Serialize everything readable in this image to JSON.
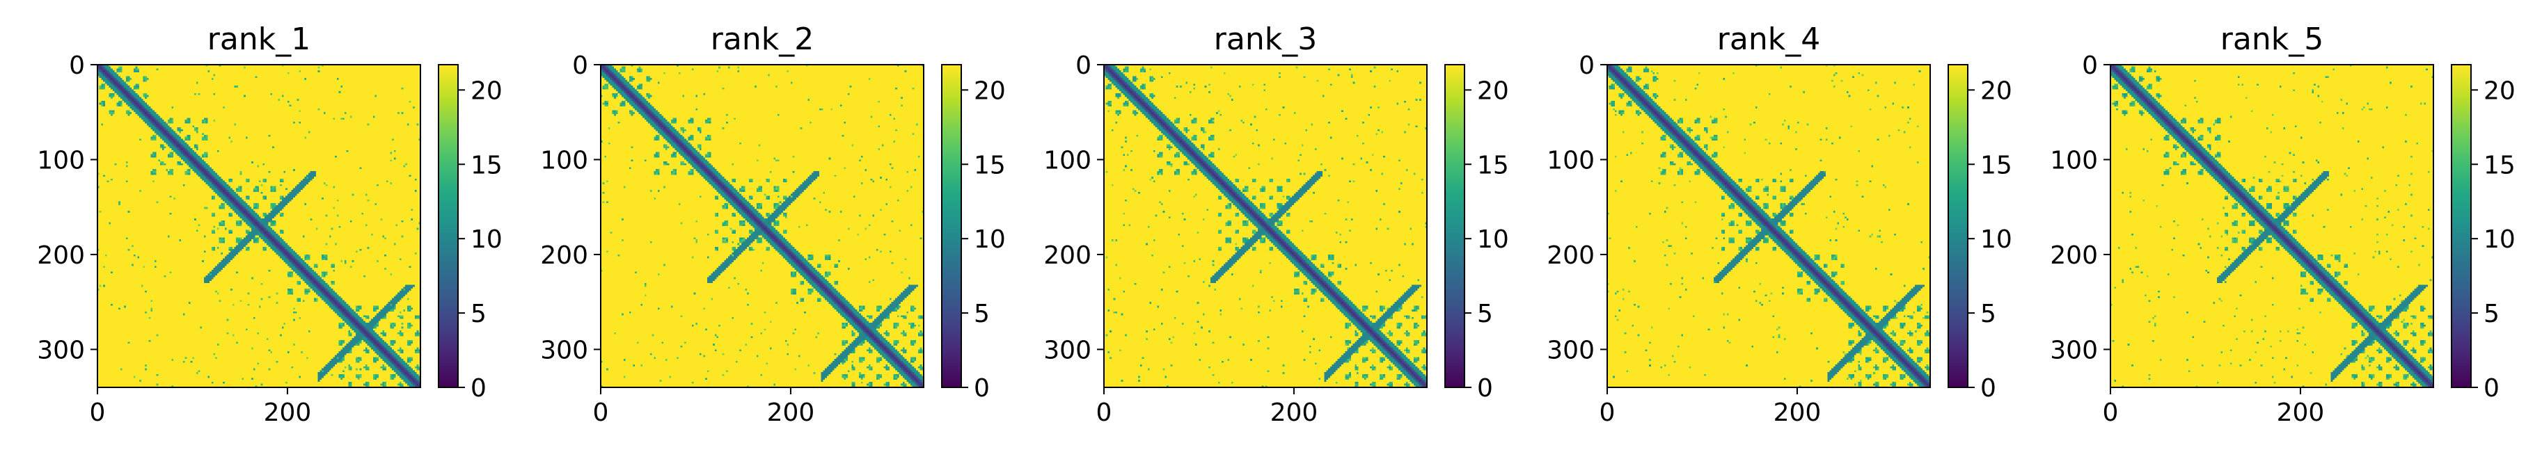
{
  "figure": {
    "background": "#ffffff"
  },
  "colormap": "viridis",
  "colors": {
    "viridis_min": "#440154",
    "viridis_max": "#fde725",
    "axis": "#000000"
  },
  "chart_data": [
    {
      "type": "heatmap",
      "title": "rank_1",
      "x_ticks": [
        0,
        200
      ],
      "y_ticks": [
        0,
        100,
        200,
        300
      ],
      "xlim": [
        0,
        340
      ],
      "ylim": [
        340,
        0
      ],
      "colorbar": {
        "ticks": [
          0,
          5,
          10,
          15,
          20
        ],
        "range": [
          0,
          21.7
        ],
        "colormap": "viridis"
      },
      "matrix_size": 340,
      "grid": false
    },
    {
      "type": "heatmap",
      "title": "rank_2",
      "x_ticks": [
        0,
        200
      ],
      "y_ticks": [
        0,
        100,
        200,
        300
      ],
      "xlim": [
        0,
        340
      ],
      "ylim": [
        340,
        0
      ],
      "colorbar": {
        "ticks": [
          0,
          5,
          10,
          15,
          20
        ],
        "range": [
          0,
          21.7
        ],
        "colormap": "viridis"
      },
      "matrix_size": 340,
      "grid": false
    },
    {
      "type": "heatmap",
      "title": "rank_3",
      "x_ticks": [
        0,
        200
      ],
      "y_ticks": [
        0,
        100,
        200,
        300
      ],
      "xlim": [
        0,
        340
      ],
      "ylim": [
        340,
        0
      ],
      "colorbar": {
        "ticks": [
          0,
          5,
          10,
          15,
          20
        ],
        "range": [
          0,
          21.7
        ],
        "colormap": "viridis"
      },
      "matrix_size": 340,
      "grid": false
    },
    {
      "type": "heatmap",
      "title": "rank_4",
      "x_ticks": [
        0,
        200
      ],
      "y_ticks": [
        0,
        100,
        200,
        300
      ],
      "xlim": [
        0,
        340
      ],
      "ylim": [
        340,
        0
      ],
      "colorbar": {
        "ticks": [
          0,
          5,
          10,
          15,
          20
        ],
        "range": [
          0,
          21.7
        ],
        "colormap": "viridis"
      },
      "matrix_size": 340,
      "grid": false
    },
    {
      "type": "heatmap",
      "title": "rank_5",
      "x_ticks": [
        0,
        200
      ],
      "y_ticks": [
        0,
        100,
        200,
        300
      ],
      "xlim": [
        0,
        340
      ],
      "ylim": [
        340,
        0
      ],
      "colorbar": {
        "ticks": [
          0,
          5,
          10,
          15,
          20
        ],
        "range": [
          0,
          21.7
        ],
        "colormap": "viridis"
      },
      "matrix_size": 340,
      "grid": false
    }
  ]
}
